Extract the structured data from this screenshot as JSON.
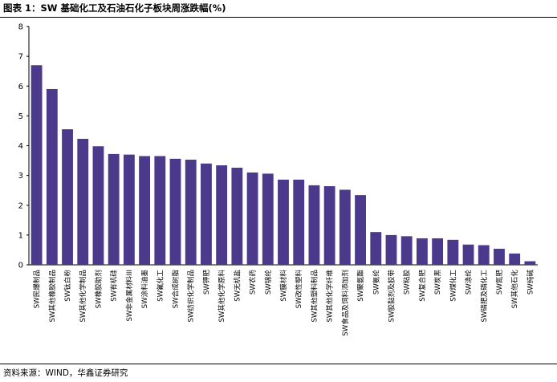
{
  "header": {
    "title": "图表 1：SW 基础化工及石油石化子板块周涨跌幅(%)"
  },
  "footer": {
    "source": "资料来源：WIND，华鑫证券研究"
  },
  "chart_data": {
    "type": "bar",
    "title": "图表 1：SW 基础化工及石油石化子板块周涨跌幅(%)",
    "xlabel": "",
    "ylabel": "",
    "ylim": [
      0,
      8
    ],
    "yticks": [
      0,
      1,
      2,
      3,
      4,
      5,
      6,
      7,
      8
    ],
    "grid": false,
    "legend": "none",
    "bar_color": "#4b3a8c",
    "categories": [
      "SW民爆制品",
      "SW其他橡胶制品",
      "SW钛白粉",
      "SW其他化学制品",
      "SW橡胶助剂",
      "SW有机硅",
      "SW非金属材料III",
      "SW涂料油墨",
      "SW氟化工",
      "SW合成树脂",
      "SW纺织化学制品",
      "SW钾肥",
      "SW其他化学原料",
      "SW无机盐",
      "SW农药",
      "SW锦纶",
      "SW膜材料",
      "SW改性塑料",
      "SW其他塑料制品",
      "SW其他化学纤维",
      "SW食品及饲料添加剂",
      "SW聚氨酯",
      "SW氨纶",
      "SW胶黏剂及胶带",
      "SW粘胶",
      "SW复合肥",
      "SW炭黑",
      "SW煤化工",
      "SW涤纶",
      "SW磷肥及磷化工",
      "SW氮肥",
      "SW其他石化",
      "SW纯碱"
    ],
    "values": [
      6.7,
      5.9,
      4.55,
      4.23,
      3.98,
      3.72,
      3.7,
      3.65,
      3.65,
      3.56,
      3.53,
      3.4,
      3.34,
      3.26,
      3.1,
      3.06,
      2.86,
      2.86,
      2.67,
      2.64,
      2.52,
      2.34,
      1.1,
      1.0,
      0.96,
      0.89,
      0.89,
      0.84,
      0.68,
      0.66,
      0.54,
      0.38,
      0.12
    ]
  }
}
